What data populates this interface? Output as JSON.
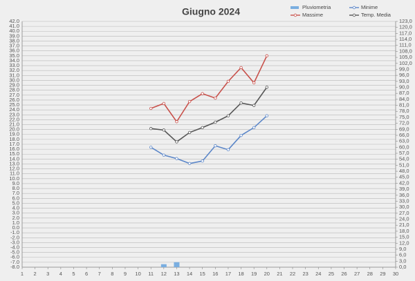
{
  "chart_data": {
    "type": "line",
    "title": "Giugno 2024",
    "x": [
      11,
      12,
      13,
      14,
      15,
      16,
      17,
      18,
      19,
      20
    ],
    "xlim": [
      1,
      30
    ],
    "xticks": [
      1,
      2,
      3,
      4,
      5,
      6,
      7,
      8,
      9,
      10,
      11,
      12,
      13,
      14,
      15,
      16,
      17,
      18,
      19,
      20,
      21,
      22,
      23,
      24,
      25,
      26,
      27,
      28,
      29,
      30
    ],
    "ylim": [
      -8,
      42
    ],
    "yticks": [
      {
        "value": -8,
        "label": "-8.0"
      },
      {
        "value": -7,
        "label": "-7.0"
      },
      {
        "value": -6,
        "label": "-6.0"
      },
      {
        "value": -5,
        "label": "-5.0"
      },
      {
        "value": -4,
        "label": "-4.0"
      },
      {
        "value": -3,
        "label": "-3.0"
      },
      {
        "value": -2,
        "label": "-2.0"
      },
      {
        "value": -1,
        "label": "-1.0"
      },
      {
        "value": 0,
        "label": "0.0"
      },
      {
        "value": 1,
        "label": "1.0"
      },
      {
        "value": 2,
        "label": "2.0"
      },
      {
        "value": 3,
        "label": "3.0"
      },
      {
        "value": 4,
        "label": "4.0"
      },
      {
        "value": 5,
        "label": "5.0"
      },
      {
        "value": 6,
        "label": "6.0"
      },
      {
        "value": 7,
        "label": "7.0"
      },
      {
        "value": 8,
        "label": "8.0"
      },
      {
        "value": 9,
        "label": "9.0"
      },
      {
        "value": 10,
        "label": "10.0"
      },
      {
        "value": 11,
        "label": "11.0"
      },
      {
        "value": 12,
        "label": "12.0"
      },
      {
        "value": 13,
        "label": "13.0"
      },
      {
        "value": 14,
        "label": "14.0"
      },
      {
        "value": 15,
        "label": "15.0"
      },
      {
        "value": 16,
        "label": "16.0"
      },
      {
        "value": 17,
        "label": "17.0"
      },
      {
        "value": 18,
        "label": "18.0"
      },
      {
        "value": 19,
        "label": "19.0"
      },
      {
        "value": 20,
        "label": "20.0"
      },
      {
        "value": 21,
        "label": "21.0"
      },
      {
        "value": 22,
        "label": "22.0"
      },
      {
        "value": 23,
        "label": "23.0"
      },
      {
        "value": 24,
        "label": "24.0"
      },
      {
        "value": 25,
        "label": "25.0"
      },
      {
        "value": 26,
        "label": "26.0"
      },
      {
        "value": 27,
        "label": "27.0"
      },
      {
        "value": 28,
        "label": "28.0"
      },
      {
        "value": 29,
        "label": "29.0"
      },
      {
        "value": 30,
        "label": "30.0"
      },
      {
        "value": 31,
        "label": "31.0"
      },
      {
        "value": 32,
        "label": "32.0"
      },
      {
        "value": 33,
        "label": "33.0"
      },
      {
        "value": 34,
        "label": "34.0"
      },
      {
        "value": 35,
        "label": "35.0"
      },
      {
        "value": 36,
        "label": "36.0"
      },
      {
        "value": 37,
        "label": "37.0"
      },
      {
        "value": 38,
        "label": "38.0"
      },
      {
        "value": 39,
        "label": "39.0"
      },
      {
        "value": 40,
        "label": "40.0"
      },
      {
        "value": 41,
        "label": "41.0"
      },
      {
        "value": 42,
        "label": "42.0"
      }
    ],
    "y2lim": [
      0,
      123
    ],
    "y2ticks": [
      {
        "value": 0,
        "label": "0,0"
      },
      {
        "value": 3,
        "label": "3,0"
      },
      {
        "value": 6,
        "label": "6,0"
      },
      {
        "value": 9,
        "label": "9,0"
      },
      {
        "value": 12,
        "label": "12,0"
      },
      {
        "value": 15,
        "label": "15,0"
      },
      {
        "value": 18,
        "label": "18,0"
      },
      {
        "value": 21,
        "label": "21,0"
      },
      {
        "value": 24,
        "label": "24,0"
      },
      {
        "value": 27,
        "label": "27,0"
      },
      {
        "value": 30,
        "label": "30,0"
      },
      {
        "value": 33,
        "label": "33,0"
      },
      {
        "value": 36,
        "label": "36,0"
      },
      {
        "value": 39,
        "label": "39,0"
      },
      {
        "value": 42,
        "label": "42,0"
      },
      {
        "value": 45,
        "label": "45,0"
      },
      {
        "value": 48,
        "label": "48,0"
      },
      {
        "value": 51,
        "label": "51,0"
      },
      {
        "value": 54,
        "label": "54,0"
      },
      {
        "value": 57,
        "label": "57,0"
      },
      {
        "value": 60,
        "label": "60,0"
      },
      {
        "value": 63,
        "label": "63,0"
      },
      {
        "value": 66,
        "label": "66,0"
      },
      {
        "value": 69,
        "label": "69,0"
      },
      {
        "value": 72,
        "label": "72,0"
      },
      {
        "value": 75,
        "label": "75,0"
      },
      {
        "value": 78,
        "label": "78,0"
      },
      {
        "value": 81,
        "label": "81,0"
      },
      {
        "value": 84,
        "label": "84,0"
      },
      {
        "value": 87,
        "label": "87,0"
      },
      {
        "value": 90,
        "label": "90,0"
      },
      {
        "value": 93,
        "label": "93,0"
      },
      {
        "value": 96,
        "label": "96,0"
      },
      {
        "value": 99,
        "label": "99,0"
      },
      {
        "value": 102,
        "label": "102,0"
      },
      {
        "value": 105,
        "label": "105,0"
      },
      {
        "value": 108,
        "label": "108,0"
      },
      {
        "value": 111,
        "label": "111,0"
      },
      {
        "value": 114,
        "label": "114,0"
      },
      {
        "value": 117,
        "label": "117,0"
      },
      {
        "value": 120,
        "label": "120,0"
      },
      {
        "value": 123,
        "label": "123,0"
      }
    ],
    "grid": true,
    "series": [
      {
        "name": "Pluviometria",
        "type": "bar",
        "axis": "y2",
        "color": "#7aaee0",
        "values": [
          null,
          1.5,
          2.5,
          null,
          null,
          null,
          null,
          null,
          null,
          null
        ]
      },
      {
        "name": "Minime",
        "color": "#5b86c8",
        "values": [
          16.4,
          14.8,
          14.1,
          13.1,
          13.6,
          16.7,
          15.9,
          18.8,
          20.4,
          22.8
        ]
      },
      {
        "name": "Massime",
        "color": "#c8504a",
        "values": [
          24.3,
          25.3,
          21.6,
          25.7,
          27.3,
          26.4,
          29.8,
          32.6,
          29.5,
          35.0
        ]
      },
      {
        "name": "Temp. Media",
        "color": "#555555",
        "values": [
          20.2,
          19.9,
          17.5,
          19.4,
          20.4,
          21.5,
          22.8,
          25.4,
          24.9,
          28.6
        ]
      }
    ]
  }
}
